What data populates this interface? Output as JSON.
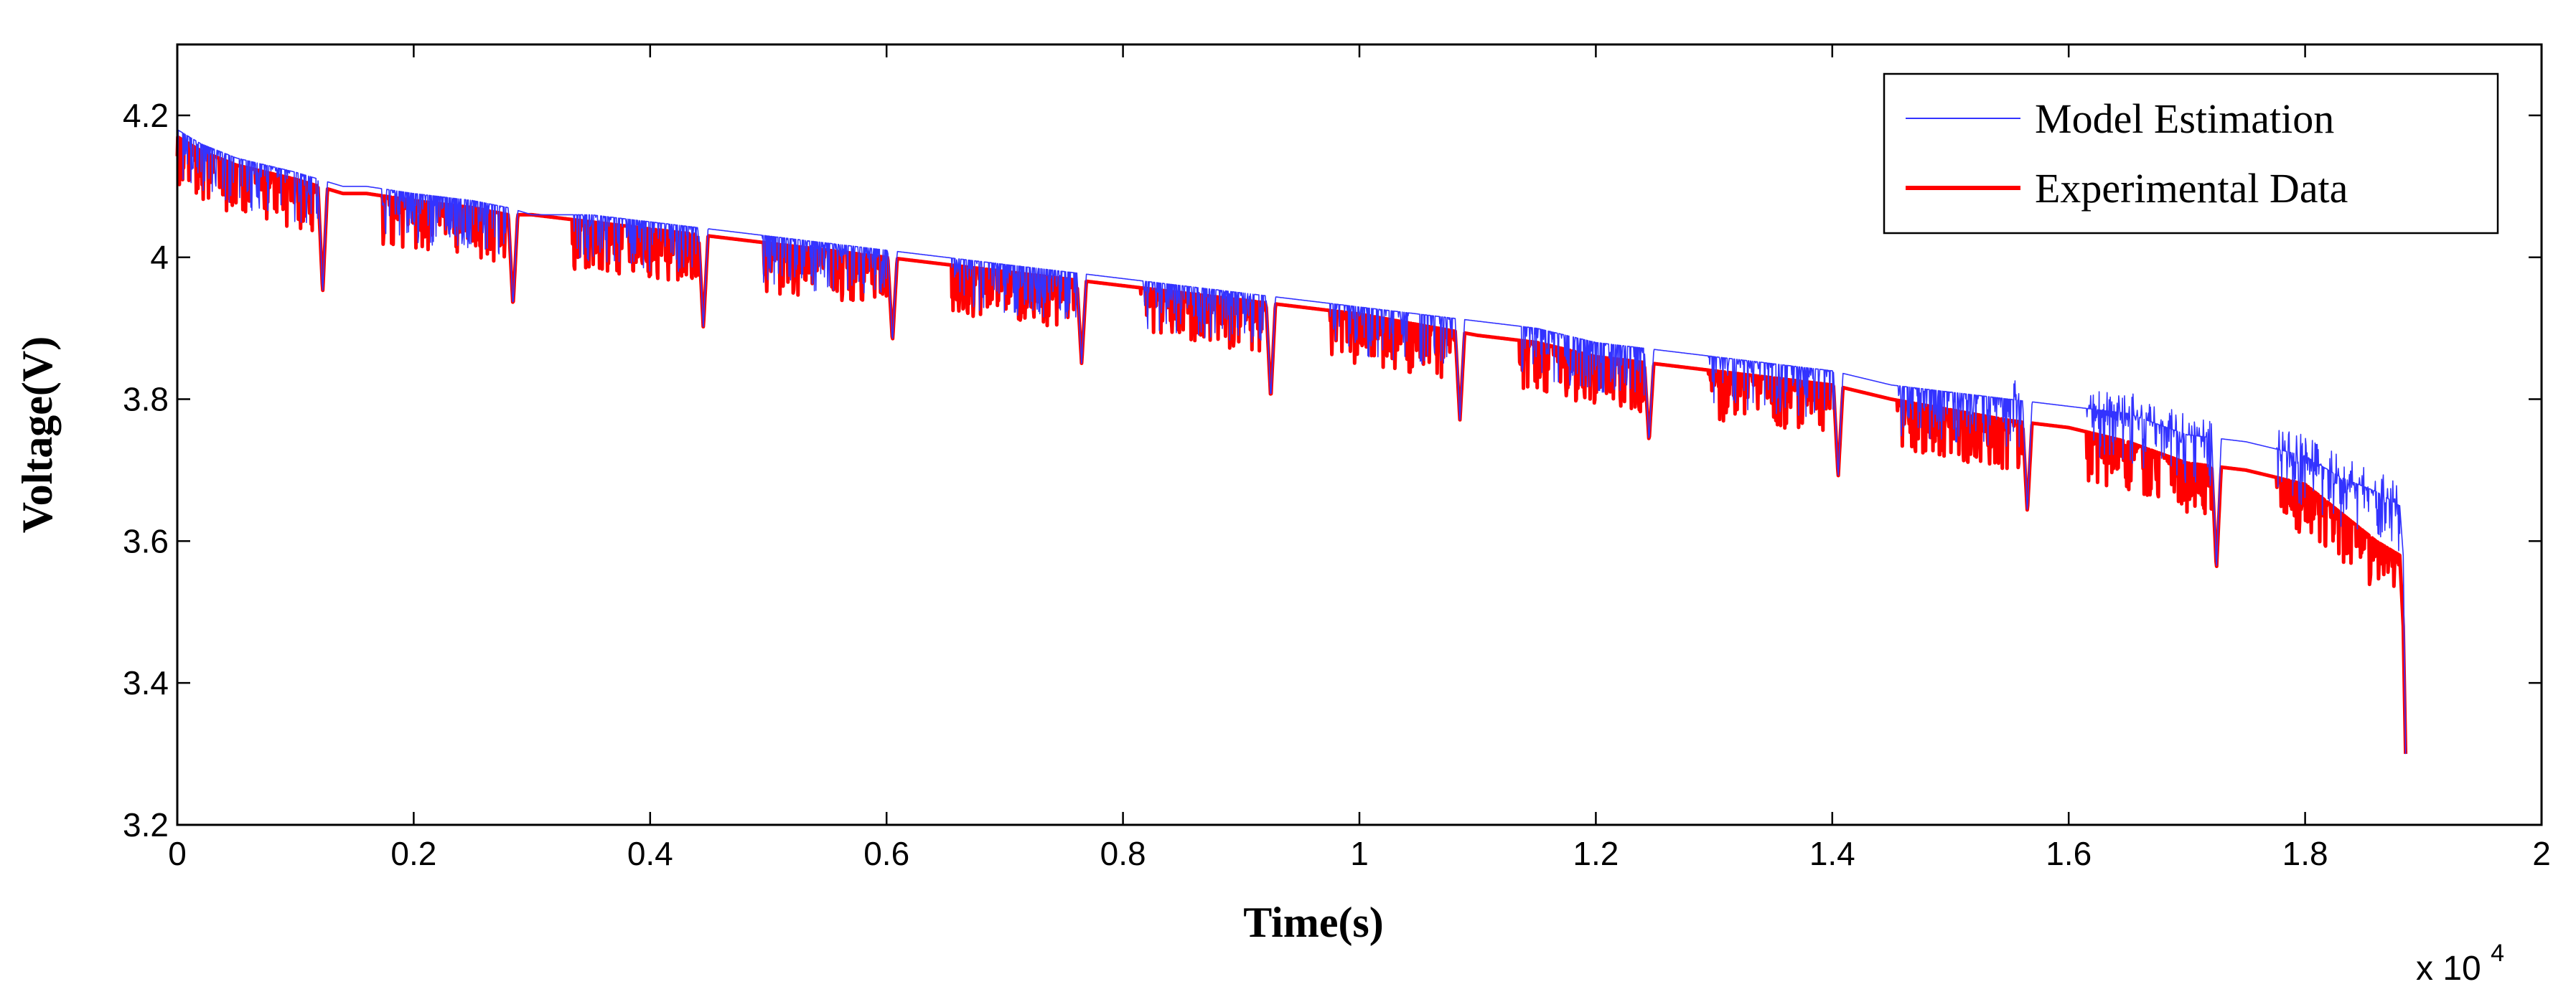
{
  "chart_data": {
    "type": "line",
    "title": "",
    "xlabel": "Time(s)",
    "ylabel": "Voltage(V)",
    "x_multiplier_label": "x 10",
    "x_multiplier_exponent": "4",
    "xlim": [
      0,
      2
    ],
    "ylim": [
      3.2,
      4.3
    ],
    "x_ticks": [
      "0",
      "0.2",
      "0.4",
      "0.6",
      "0.8",
      "1",
      "1.2",
      "1.4",
      "1.6",
      "1.8",
      "2"
    ],
    "y_ticks": [
      "3.2",
      "3.4",
      "3.6",
      "3.8",
      "4",
      "4.2"
    ],
    "grid": false,
    "legend": "top-right",
    "series": [
      {
        "name": "Model Estimation",
        "color": "#3333ff",
        "baseline": [
          [
            0,
            4.18
          ],
          [
            0.02,
            4.16
          ],
          [
            0.05,
            4.14
          ],
          [
            0.1,
            4.12
          ],
          [
            0.12,
            4.11
          ],
          [
            0.14,
            4.1
          ],
          [
            0.16,
            4.1
          ],
          [
            0.2,
            4.09
          ],
          [
            0.25,
            4.08
          ],
          [
            0.28,
            4.07
          ],
          [
            0.3,
            4.06
          ],
          [
            0.35,
            4.06
          ],
          [
            0.4,
            4.05
          ],
          [
            0.45,
            4.04
          ],
          [
            0.5,
            4.03
          ],
          [
            0.55,
            4.02
          ],
          [
            0.6,
            4.01
          ],
          [
            0.65,
            4.0
          ],
          [
            0.7,
            3.99
          ],
          [
            0.75,
            3.98
          ],
          [
            0.8,
            3.97
          ],
          [
            0.85,
            3.96
          ],
          [
            0.9,
            3.95
          ],
          [
            0.95,
            3.94
          ],
          [
            1.0,
            3.93
          ],
          [
            1.05,
            3.92
          ],
          [
            1.1,
            3.91
          ],
          [
            1.15,
            3.9
          ],
          [
            1.2,
            3.88
          ],
          [
            1.25,
            3.87
          ],
          [
            1.3,
            3.86
          ],
          [
            1.35,
            3.85
          ],
          [
            1.4,
            3.84
          ],
          [
            1.45,
            3.82
          ],
          [
            1.5,
            3.81
          ],
          [
            1.55,
            3.8
          ],
          [
            1.6,
            3.79
          ],
          [
            1.65,
            3.78
          ],
          [
            1.7,
            3.75
          ],
          [
            1.75,
            3.74
          ],
          [
            1.8,
            3.72
          ],
          [
            1.83,
            3.69
          ],
          [
            1.86,
            3.67
          ],
          [
            1.88,
            3.65
          ]
        ],
        "end_drop": [
          [
            1.88,
            3.65
          ],
          [
            1.883,
            3.58
          ],
          [
            1.885,
            3.3
          ]
        ]
      },
      {
        "name": "Experimental Data",
        "color": "#ff0000",
        "baseline": [
          [
            0,
            4.17
          ],
          [
            0.02,
            4.15
          ],
          [
            0.05,
            4.13
          ],
          [
            0.1,
            4.11
          ],
          [
            0.12,
            4.1
          ],
          [
            0.14,
            4.09
          ],
          [
            0.16,
            4.09
          ],
          [
            0.2,
            4.08
          ],
          [
            0.25,
            4.07
          ],
          [
            0.28,
            4.06
          ],
          [
            0.3,
            4.06
          ],
          [
            0.35,
            4.05
          ],
          [
            0.4,
            4.04
          ],
          [
            0.45,
            4.03
          ],
          [
            0.5,
            4.02
          ],
          [
            0.55,
            4.01
          ],
          [
            0.6,
            4.0
          ],
          [
            0.65,
            3.99
          ],
          [
            0.7,
            3.98
          ],
          [
            0.75,
            3.97
          ],
          [
            0.8,
            3.96
          ],
          [
            0.85,
            3.95
          ],
          [
            0.9,
            3.94
          ],
          [
            0.95,
            3.93
          ],
          [
            1.0,
            3.92
          ],
          [
            1.05,
            3.905
          ],
          [
            1.1,
            3.89
          ],
          [
            1.15,
            3.88
          ],
          [
            1.2,
            3.86
          ],
          [
            1.25,
            3.85
          ],
          [
            1.3,
            3.84
          ],
          [
            1.35,
            3.83
          ],
          [
            1.4,
            3.82
          ],
          [
            1.45,
            3.8
          ],
          [
            1.5,
            3.785
          ],
          [
            1.55,
            3.77
          ],
          [
            1.6,
            3.76
          ],
          [
            1.65,
            3.74
          ],
          [
            1.7,
            3.71
          ],
          [
            1.75,
            3.7
          ],
          [
            1.8,
            3.68
          ],
          [
            1.83,
            3.64
          ],
          [
            1.86,
            3.6
          ],
          [
            1.88,
            3.58
          ]
        ],
        "end_drop": [
          [
            1.88,
            3.58
          ],
          [
            1.883,
            3.48
          ],
          [
            1.885,
            3.3
          ]
        ]
      }
    ],
    "major_dips": [
      {
        "x": 0.123,
        "y": 3.95
      },
      {
        "x": 0.284,
        "y": 3.93
      },
      {
        "x": 0.445,
        "y": 3.9
      },
      {
        "x": 0.605,
        "y": 3.88
      },
      {
        "x": 0.765,
        "y": 3.85
      },
      {
        "x": 0.925,
        "y": 3.8
      },
      {
        "x": 1.085,
        "y": 3.77
      },
      {
        "x": 1.245,
        "y": 3.74
      },
      {
        "x": 1.405,
        "y": 3.69
      },
      {
        "x": 1.565,
        "y": 3.64
      },
      {
        "x": 1.725,
        "y": 3.56
      }
    ]
  }
}
